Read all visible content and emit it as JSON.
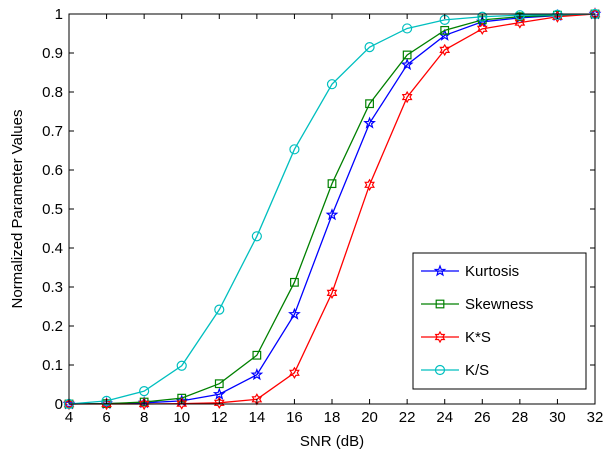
{
  "chart_data": {
    "type": "line",
    "xlabel": "SNR (dB)",
    "ylabel": "Normalized Parameter Values",
    "xlim": [
      4,
      32
    ],
    "ylim": [
      0,
      1
    ],
    "xticks": [
      4,
      6,
      8,
      10,
      12,
      14,
      16,
      18,
      20,
      22,
      24,
      26,
      28,
      30,
      32
    ],
    "yticks": [
      0,
      0.1,
      0.2,
      0.3,
      0.4,
      0.5,
      0.6,
      0.7,
      0.8,
      0.9,
      1
    ],
    "ytick_labels": [
      "0",
      "0.1",
      "0.2",
      "0.3",
      "0.4",
      "0.5",
      "0.6",
      "0.7",
      "0.8",
      "0.9",
      "1"
    ],
    "grid": false,
    "legend_position": "bottom-right",
    "x": [
      4,
      6,
      8,
      10,
      12,
      14,
      16,
      18,
      20,
      22,
      24,
      26,
      28,
      30,
      32
    ],
    "series": [
      {
        "name": "Kurtosis",
        "color": "#0000ff",
        "marker": "star",
        "values": [
          0.0,
          0.001,
          0.003,
          0.008,
          0.025,
          0.075,
          0.23,
          0.485,
          0.72,
          0.87,
          0.945,
          0.98,
          0.99,
          0.996,
          1.0
        ]
      },
      {
        "name": "Skewness",
        "color": "#008000",
        "marker": "square",
        "values": [
          0.0,
          0.001,
          0.005,
          0.015,
          0.052,
          0.125,
          0.312,
          0.565,
          0.77,
          0.895,
          0.958,
          0.985,
          0.993,
          0.997,
          1.0
        ]
      },
      {
        "name": "K*S",
        "color": "#ff0000",
        "marker": "hexagram",
        "values": [
          0.0,
          0.0,
          0.0,
          0.001,
          0.003,
          0.012,
          0.08,
          0.285,
          0.562,
          0.787,
          0.908,
          0.962,
          0.978,
          0.993,
          1.0
        ]
      },
      {
        "name": "K/S",
        "color": "#00bfbf",
        "marker": "circle",
        "values": [
          0.0,
          0.008,
          0.033,
          0.098,
          0.242,
          0.43,
          0.653,
          0.82,
          0.915,
          0.963,
          0.985,
          0.993,
          0.997,
          0.998,
          1.0
        ]
      }
    ]
  }
}
